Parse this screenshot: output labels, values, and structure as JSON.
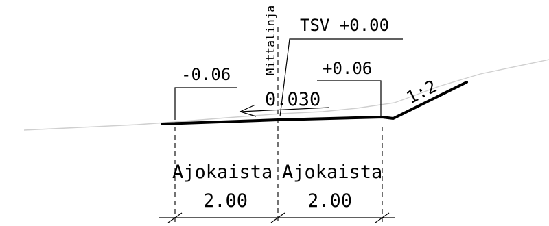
{
  "drawing": {
    "centerline_label": "Mittalinja",
    "elevation_center": "TSV +0.00",
    "elevation_left": "-0.06",
    "elevation_right": "+0.06",
    "crossfall": "0.030",
    "slope_ratio": "1:2",
    "lane_left_label": "Ajokaista",
    "lane_left_width": "2.00",
    "lane_right_label": "Ajokaista",
    "lane_right_width": "2.00"
  },
  "colors": {
    "line": "#000000",
    "ground": "#cfcfcf",
    "background": "#ffffff"
  }
}
